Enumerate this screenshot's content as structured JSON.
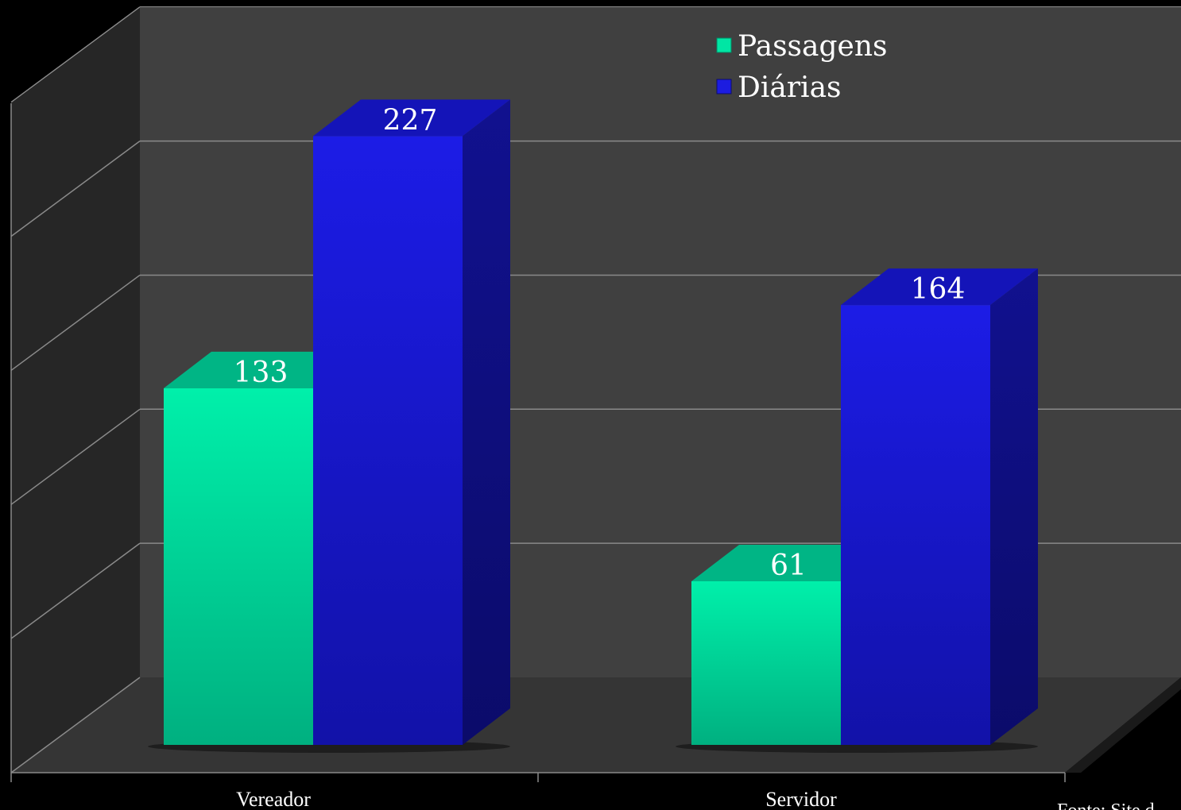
{
  "chart_data": {
    "type": "bar",
    "categories": [
      "Vereador",
      "Servidor"
    ],
    "series": [
      {
        "name": "Passagens",
        "values": [
          133,
          61
        ]
      },
      {
        "name": "Diárias",
        "values": [
          227,
          164
        ]
      }
    ],
    "ylim": [
      0,
      250
    ],
    "grid": true,
    "legend_position": "top-right",
    "colors": {
      "Passagens": "#00e6a4",
      "Diárias": "#1c1ce0",
      "background": "#000000",
      "back_wall": "#404040",
      "side_wall": "#2a2a2a",
      "floor": "#333333"
    },
    "source_note": "Fonte: Site d"
  }
}
